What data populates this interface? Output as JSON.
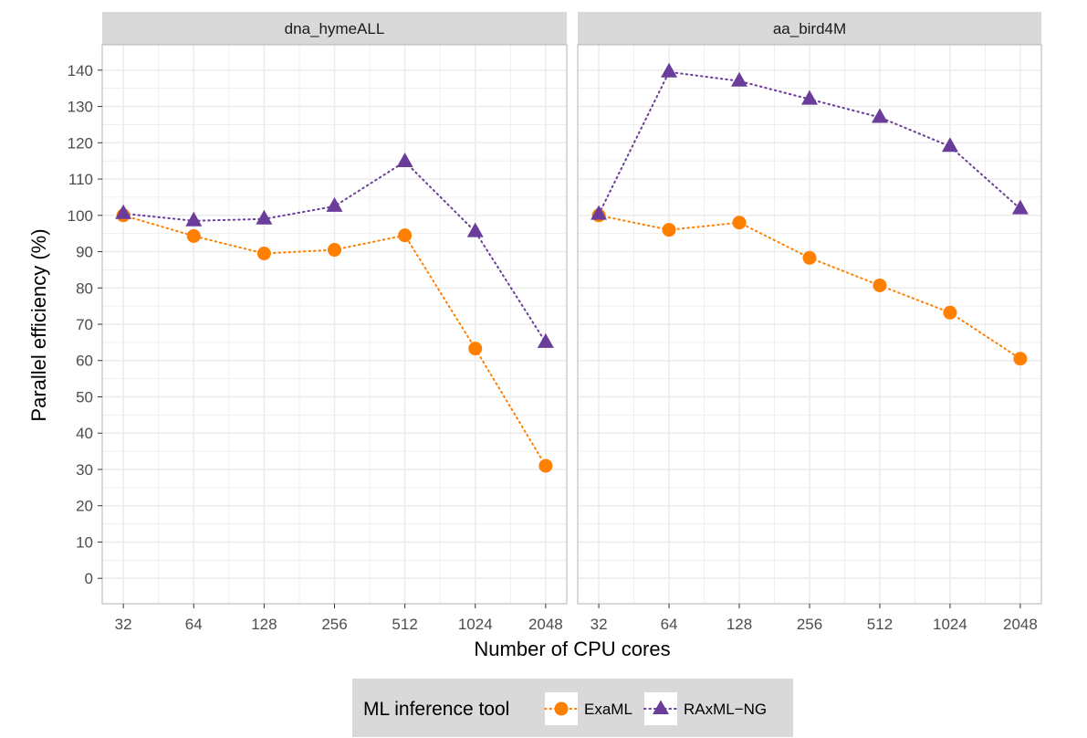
{
  "chart_data": {
    "type": "line",
    "xlabel": "Number of CPU cores",
    "ylabel": "Parallel efficiency (%)",
    "categories": [
      "32",
      "64",
      "128",
      "256",
      "512",
      "1024",
      "2048"
    ],
    "x_scale": "log2",
    "ylim": [
      -7,
      147
    ],
    "yticks": [
      0,
      10,
      20,
      30,
      40,
      50,
      60,
      70,
      80,
      90,
      100,
      110,
      120,
      130,
      140
    ],
    "grid": true,
    "legend": {
      "title": "ML inference tool",
      "position": "bottom",
      "entries": [
        "ExaML",
        "RAxML−NG"
      ]
    },
    "colors": {
      "ExaML": "#ff7f00",
      "RAxML-NG": "#6a3d9a",
      "strip_bg": "#d9d9d9",
      "grid": "#ebebeb"
    },
    "panels": [
      {
        "title": "dna_hymeALL",
        "series": [
          {
            "name": "ExaML",
            "marker": "circle",
            "values": [
              100,
              94.3,
              89.5,
              90.5,
              94.5,
              63.3,
              31
            ]
          },
          {
            "name": "RAxML−NG",
            "marker": "triangle",
            "values": [
              100.5,
              98.5,
              99,
              102.5,
              114.8,
              95.5,
              65
            ]
          }
        ]
      },
      {
        "title": "aa_bird4M",
        "series": [
          {
            "name": "ExaML",
            "marker": "circle",
            "values": [
              100,
              96,
              98,
              88.3,
              80.7,
              73.2,
              60.5
            ]
          },
          {
            "name": "RAxML−NG",
            "marker": "triangle",
            "values": [
              100.3,
              139.5,
              137,
              132,
              127,
              119,
              101.8
            ]
          }
        ]
      }
    ]
  }
}
